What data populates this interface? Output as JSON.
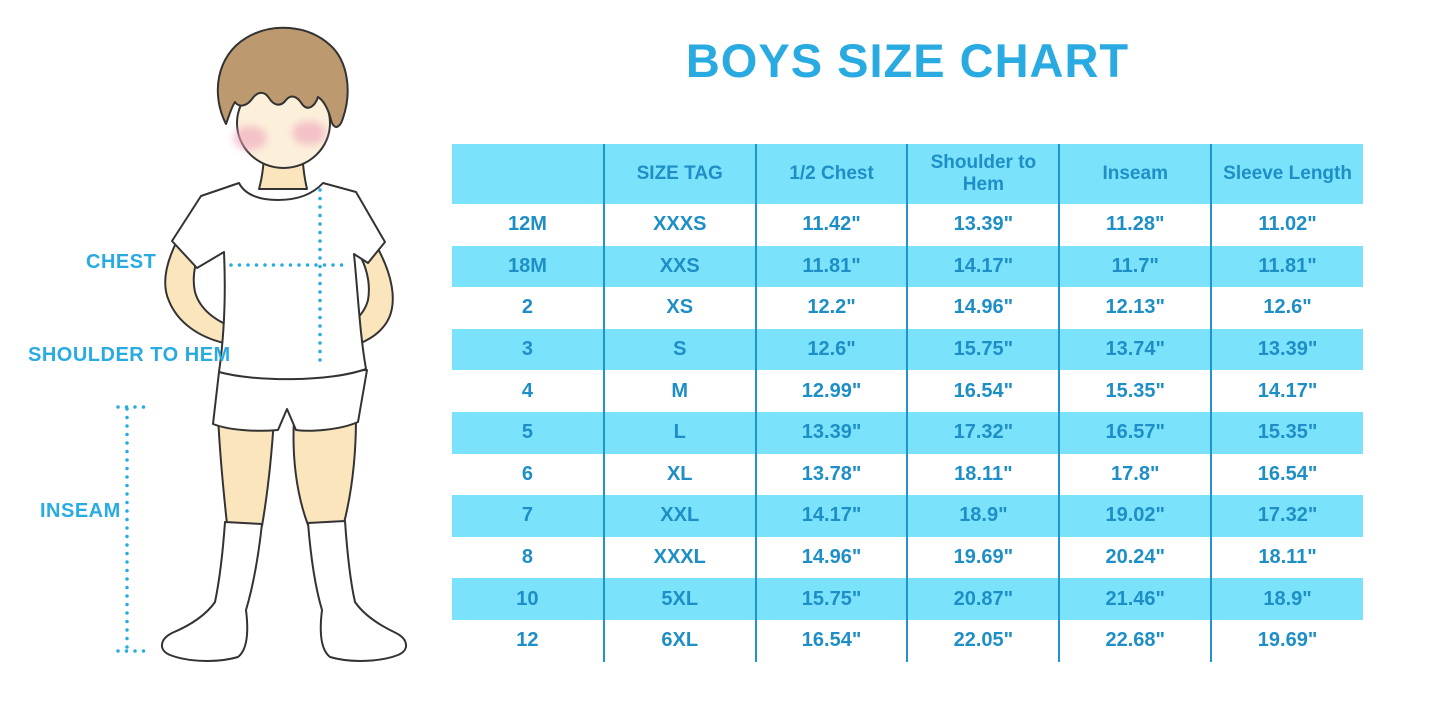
{
  "chart_data": {
    "type": "table",
    "title": "BOYS SIZE CHART",
    "columns": [
      "",
      "SIZE TAG",
      "1/2 Chest",
      "Shoulder to Hem",
      "Inseam",
      "Sleeve Length"
    ],
    "rows": [
      [
        "12M",
        "XXXS",
        "11.42\"",
        "13.39\"",
        "11.28\"",
        "11.02\""
      ],
      [
        "18M",
        "XXS",
        "11.81\"",
        "14.17\"",
        "11.7\"",
        "11.81\""
      ],
      [
        "2",
        "XS",
        "12.2\"",
        "14.96\"",
        "12.13\"",
        "12.6\""
      ],
      [
        "3",
        "S",
        "12.6\"",
        "15.75\"",
        "13.74\"",
        "13.39\""
      ],
      [
        "4",
        "M",
        "12.99\"",
        "16.54\"",
        "15.35\"",
        "14.17\""
      ],
      [
        "5",
        "L",
        "13.39\"",
        "17.32\"",
        "16.57\"",
        "15.35\""
      ],
      [
        "6",
        "XL",
        "13.78\"",
        "18.11\"",
        "17.8\"",
        "16.54\""
      ],
      [
        "7",
        "XXL",
        "14.17\"",
        "18.9\"",
        "19.02\"",
        "17.32\""
      ],
      [
        "8",
        "XXXL",
        "14.96\"",
        "19.69\"",
        "20.24\"",
        "18.11\""
      ],
      [
        "10",
        "5XL",
        "15.75\"",
        "20.87\"",
        "21.46\"",
        "18.9\""
      ],
      [
        "12",
        "6XL",
        "16.54\"",
        "22.05\"",
        "22.68\"",
        "19.69\""
      ]
    ],
    "layout": {
      "header_row_filled": true,
      "zebra_striping": "alternating rows filled light blue",
      "outer_border": false,
      "column_separators": true
    }
  },
  "figure": {
    "labels": {
      "chest": "CHEST",
      "shoulder_to_hem": "SHOULDER TO HEM",
      "inseam": "INSEAM"
    }
  },
  "colors": {
    "accent": "#29ABE2",
    "table_fill": "#7BE2FB",
    "table_line": "#2193CD",
    "table_text": "#1E8FC6",
    "skin": "#FAE5BC",
    "face": "#FCF0DB",
    "hair": "#BC996F",
    "blush": "#EFA3BB",
    "outline": "#333333"
  }
}
